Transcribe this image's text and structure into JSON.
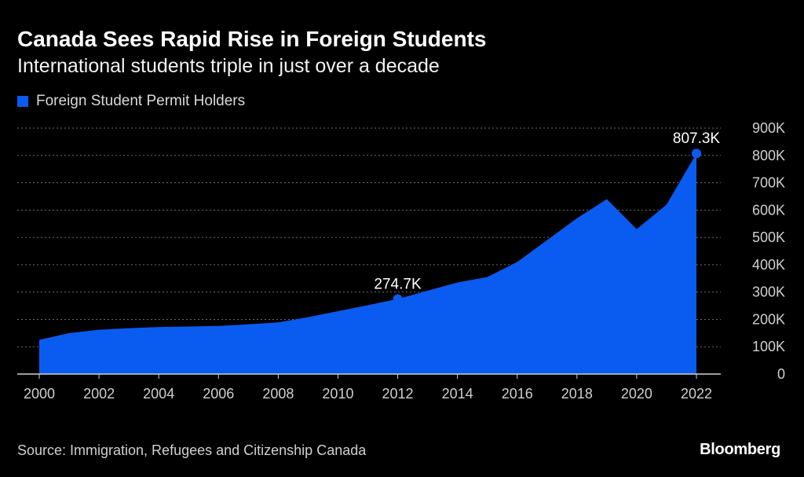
{
  "title": "Canada Sees Rapid Rise in Foreign Students",
  "subtitle": "International students triple in just over a decade",
  "source": "Source: Immigration, Refugees and Citizenship Canada",
  "brand": "Bloomberg",
  "colors": {
    "background": "#000000",
    "area": "#0a5cf0",
    "grid": "#6e6e6e",
    "text": "#ffffff",
    "axis": "#cfcfcf"
  },
  "chart_data": {
    "type": "area",
    "title": "",
    "legend": {
      "position": "top-left"
    },
    "series": [
      {
        "name": "Foreign Student Permit Holders",
        "x": [
          2000,
          2001,
          2002,
          2003,
          2004,
          2005,
          2006,
          2007,
          2008,
          2009,
          2010,
          2011,
          2012,
          2013,
          2014,
          2015,
          2016,
          2017,
          2018,
          2019,
          2020,
          2021,
          2022
        ],
        "values": [
          125,
          150,
          162,
          168,
          172,
          174,
          176,
          182,
          189,
          208,
          230,
          252,
          274.7,
          305,
          335,
          355,
          410,
          490,
          570,
          640,
          530,
          620,
          807.3
        ]
      }
    ],
    "annotations": [
      {
        "x": 2012,
        "y": 274.7,
        "label": "274.7K"
      },
      {
        "x": 2022,
        "y": 807.3,
        "label": "807.3K"
      }
    ],
    "x_ticks": [
      "2000",
      "2002",
      "2004",
      "2006",
      "2008",
      "2010",
      "2012",
      "2014",
      "2016",
      "2018",
      "2020",
      "2022"
    ],
    "y_ticks": [
      "0",
      "100K",
      "200K",
      "300K",
      "400K",
      "500K",
      "600K",
      "700K",
      "800K",
      "900K"
    ],
    "xlim": [
      2000,
      2022
    ],
    "ylim": [
      0,
      900
    ],
    "y_axis_position": "right",
    "grid": true
  }
}
